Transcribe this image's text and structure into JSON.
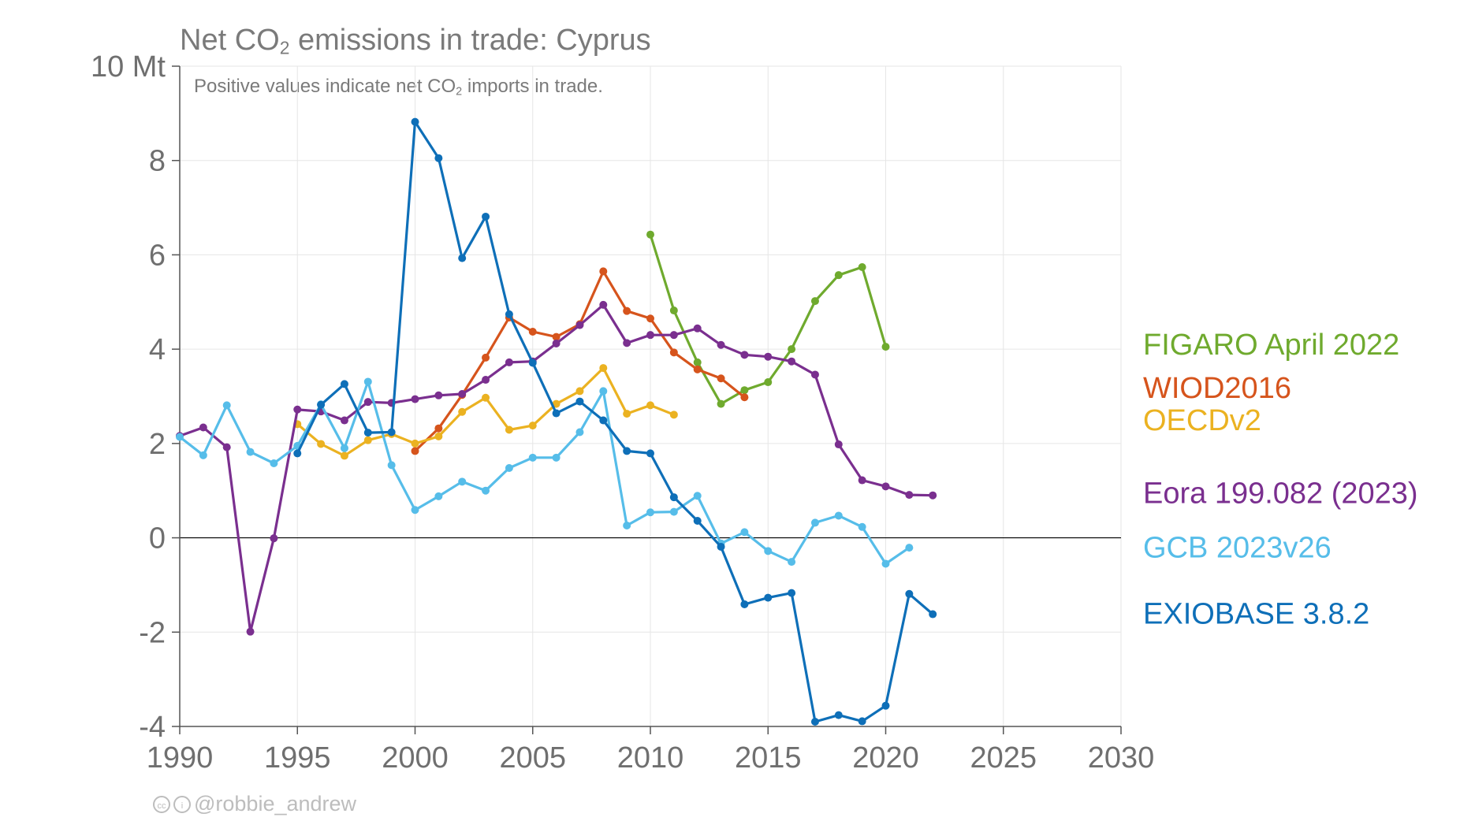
{
  "title": {
    "prefix": "Net CO",
    "sub": "2",
    "suffix": " emissions in trade: Cyprus"
  },
  "subtitle": {
    "prefix": "Positive values indicate net CO",
    "sub": "2",
    "suffix": " imports in trade."
  },
  "credit": {
    "handle": "@robbie_andrew",
    "icons": [
      "cc-icon",
      "by-icon"
    ]
  },
  "chart_data": {
    "type": "line",
    "xlim": [
      1990,
      2030
    ],
    "ylim": [
      -4,
      10
    ],
    "x_ticks": [
      1990,
      1995,
      2000,
      2005,
      2010,
      2015,
      2020,
      2025,
      2030
    ],
    "y_ticks": [
      {
        "value": -4,
        "label": "-4"
      },
      {
        "value": -2,
        "label": "-2"
      },
      {
        "value": 0,
        "label": "0"
      },
      {
        "value": 2,
        "label": "2"
      },
      {
        "value": 4,
        "label": "4"
      },
      {
        "value": 6,
        "label": "6"
      },
      {
        "value": 8,
        "label": "8"
      },
      {
        "value": 10,
        "label": "10 Mt"
      }
    ],
    "grid": true,
    "legend": "right, inline labels",
    "series": [
      {
        "name": "FIGARO April 2022",
        "color": "#6faa2e",
        "x": [
          2010,
          2011,
          2012,
          2013,
          2014,
          2015,
          2016,
          2017,
          2018,
          2019,
          2020
        ],
        "y": [
          6.43,
          4.82,
          3.72,
          2.84,
          3.13,
          3.3,
          4.0,
          5.02,
          5.57,
          5.74,
          4.05
        ],
        "label_y": 4.1
      },
      {
        "name": "WIOD2016",
        "color": "#d6541c",
        "x": [
          2000,
          2001,
          2002,
          2003,
          2004,
          2005,
          2006,
          2007,
          2008,
          2009,
          2010,
          2011,
          2012,
          2013,
          2014
        ],
        "y": [
          1.84,
          2.32,
          3.03,
          3.82,
          4.67,
          4.37,
          4.26,
          4.53,
          5.65,
          4.81,
          4.65,
          3.93,
          3.57,
          3.38,
          2.98
        ],
        "label_y": 3.18
      },
      {
        "name": "OECDv2",
        "color": "#ebb221",
        "x": [
          1995,
          1996,
          1997,
          1998,
          1999,
          2000,
          2001,
          2002,
          2003,
          2004,
          2005,
          2006,
          2007,
          2008,
          2009,
          2010,
          2011
        ],
        "y": [
          2.41,
          1.99,
          1.74,
          2.07,
          2.2,
          2.0,
          2.15,
          2.67,
          2.97,
          2.29,
          2.38,
          2.84,
          3.11,
          3.6,
          2.63,
          2.81,
          2.61
        ],
        "label_y": 2.5
      },
      {
        "name": "Eora 199.082 (2023)",
        "color": "#7a2f8f",
        "x": [
          1990,
          1991,
          1992,
          1993,
          1994,
          1995,
          1996,
          1997,
          1998,
          1999,
          2000,
          2001,
          2002,
          2003,
          2004,
          2005,
          2006,
          2007,
          2008,
          2009,
          2010,
          2011,
          2012,
          2013,
          2014,
          2015,
          2016,
          2017,
          2018,
          2019,
          2020,
          2021,
          2022
        ],
        "y": [
          2.16,
          2.34,
          1.92,
          -1.99,
          -0.01,
          2.72,
          2.68,
          2.49,
          2.88,
          2.86,
          2.94,
          3.02,
          3.05,
          3.35,
          3.72,
          3.74,
          4.12,
          4.51,
          4.94,
          4.13,
          4.3,
          4.3,
          4.44,
          4.09,
          3.88,
          3.84,
          3.74,
          3.46,
          1.98,
          1.22,
          1.09,
          0.91,
          0.9
        ],
        "label_y": 0.95
      },
      {
        "name": "GCB 2023v26",
        "color": "#56bde9",
        "x": [
          1990,
          1991,
          1992,
          1993,
          1994,
          1995,
          1996,
          1997,
          1998,
          1999,
          2000,
          2001,
          2002,
          2003,
          2004,
          2005,
          2006,
          2007,
          2008,
          2009,
          2010,
          2011,
          2012,
          2013,
          2014,
          2015,
          2016,
          2017,
          2018,
          2019,
          2020,
          2021
        ],
        "y": [
          2.14,
          1.75,
          2.81,
          1.82,
          1.58,
          1.95,
          2.83,
          1.9,
          3.31,
          1.54,
          0.59,
          0.88,
          1.19,
          1.0,
          1.48,
          1.7,
          1.7,
          2.24,
          3.11,
          0.26,
          0.54,
          0.55,
          0.89,
          -0.12,
          0.12,
          -0.28,
          -0.51,
          0.32,
          0.47,
          0.23,
          -0.55,
          -0.21
        ],
        "label_y": -0.2
      },
      {
        "name": "EXIOBASE 3.8.2",
        "color": "#0e6fb8",
        "x": [
          1995,
          1996,
          1997,
          1998,
          1999,
          2000,
          2001,
          2002,
          2003,
          2004,
          2005,
          2006,
          2007,
          2008,
          2009,
          2010,
          2011,
          2012,
          2013,
          2014,
          2015,
          2016,
          2017,
          2018,
          2019,
          2020,
          2021,
          2022
        ],
        "y": [
          1.79,
          2.82,
          3.26,
          2.23,
          2.24,
          8.82,
          8.05,
          5.93,
          6.81,
          4.74,
          3.71,
          2.64,
          2.89,
          2.49,
          1.84,
          1.79,
          0.86,
          0.36,
          -0.19,
          -1.41,
          -1.27,
          -1.17,
          -3.9,
          -3.76,
          -3.89,
          -3.56,
          -1.19,
          -1.62
        ],
        "label_y": -1.6
      }
    ]
  }
}
